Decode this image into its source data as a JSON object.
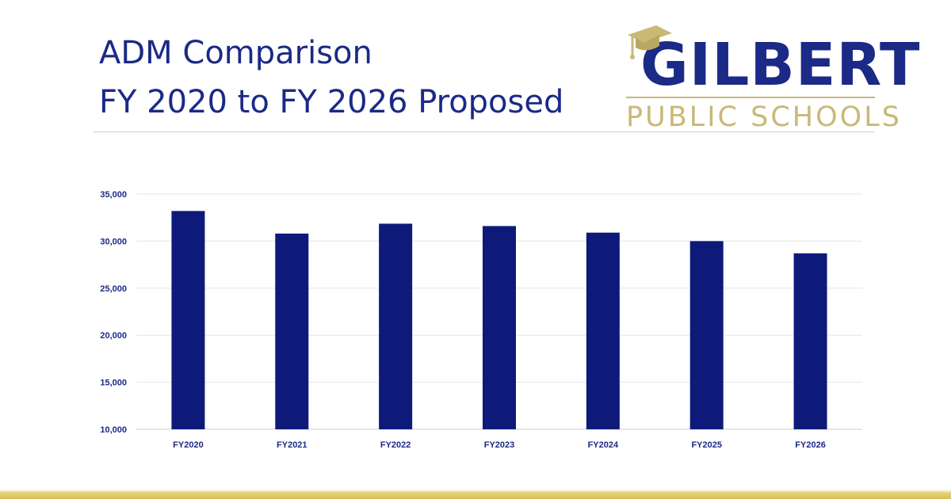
{
  "title": {
    "line1": "ADM Comparison",
    "line2": "FY 2020 to FY 2026 Proposed"
  },
  "logo": {
    "name": "GILBERT",
    "subtitle": "PUBLIC SCHOOLS",
    "icon": "graduation-cap-icon"
  },
  "colors": {
    "bar": "#0d1a7a",
    "title": "#1b2a86",
    "gold": "#c8b977",
    "grid": "#e3e5ea"
  },
  "chart_data": {
    "type": "bar",
    "title": "",
    "xlabel": "",
    "ylabel": "",
    "categories": [
      "FY2020",
      "FY2021",
      "FY2022",
      "FY2023",
      "FY2024",
      "FY2025",
      "FY2026"
    ],
    "values": [
      33200,
      30800,
      31850,
      31600,
      30900,
      30000,
      28700
    ],
    "ylim": [
      10000,
      35000
    ],
    "yticks": [
      10000,
      15000,
      20000,
      25000,
      30000,
      35000
    ],
    "ytick_labels": [
      "10,000",
      "15,000",
      "20,000",
      "25,000",
      "30,000",
      "35,000"
    ],
    "grid": true,
    "legend": "none"
  }
}
